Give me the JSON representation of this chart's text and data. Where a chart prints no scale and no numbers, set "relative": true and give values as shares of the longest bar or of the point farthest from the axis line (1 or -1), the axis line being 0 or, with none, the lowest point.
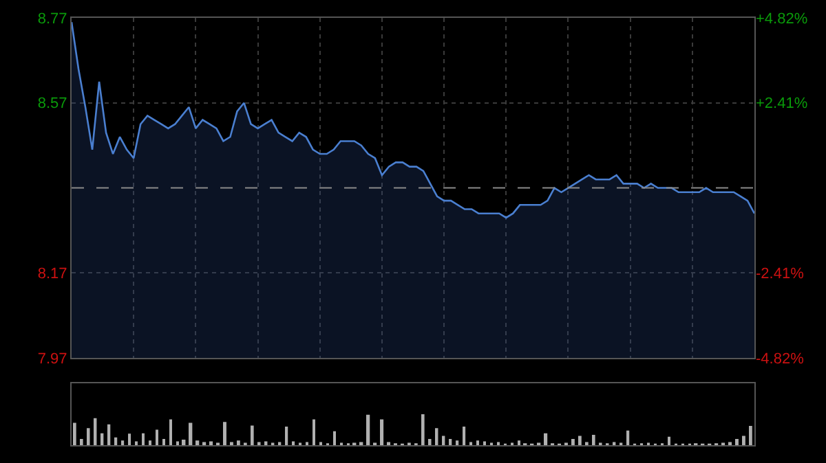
{
  "chart_data": [
    {
      "type": "area",
      "categories": [
        null,
        null,
        null,
        null,
        null,
        null,
        null,
        null,
        null,
        null,
        null,
        null,
        null,
        null,
        null,
        null,
        null,
        null,
        null,
        null,
        null,
        null,
        null,
        null,
        null,
        null,
        null,
        null,
        null,
        null,
        null,
        null,
        null,
        null,
        null,
        null,
        null,
        null,
        null,
        null,
        null,
        null,
        null,
        null,
        null,
        null,
        null,
        null,
        null,
        null,
        null,
        null,
        null,
        null,
        null,
        null,
        null,
        null,
        null,
        null,
        null,
        null,
        null,
        null,
        null,
        null,
        null,
        null,
        null,
        null,
        null,
        null,
        null,
        null,
        null,
        null,
        null,
        null,
        null,
        null,
        null,
        null,
        null,
        null,
        null,
        null,
        null,
        null,
        null,
        null,
        null,
        null,
        null,
        null,
        null,
        null,
        null,
        null,
        null,
        null
      ],
      "values": [
        8.76,
        8.65,
        8.56,
        8.46,
        8.62,
        8.5,
        8.45,
        8.49,
        8.46,
        8.44,
        8.52,
        8.54,
        8.53,
        8.52,
        8.51,
        8.52,
        8.54,
        8.56,
        8.51,
        8.53,
        8.52,
        8.51,
        8.48,
        8.49,
        8.55,
        8.57,
        8.52,
        8.51,
        8.52,
        8.53,
        8.5,
        8.49,
        8.48,
        8.5,
        8.49,
        8.46,
        8.45,
        8.45,
        8.46,
        8.48,
        8.48,
        8.48,
        8.47,
        8.45,
        8.44,
        8.4,
        8.42,
        8.43,
        8.43,
        8.42,
        8.42,
        8.41,
        8.38,
        8.35,
        8.34,
        8.34,
        8.33,
        8.32,
        8.32,
        8.31,
        8.31,
        8.31,
        8.31,
        8.3,
        8.31,
        8.33,
        8.33,
        8.33,
        8.33,
        8.34,
        8.37,
        8.36,
        8.37,
        8.38,
        8.39,
        8.4,
        8.39,
        8.39,
        8.39,
        8.4,
        8.38,
        8.38,
        8.38,
        8.37,
        8.38,
        8.37,
        8.37,
        8.37,
        8.36,
        8.36,
        8.36,
        8.36,
        8.37,
        8.36,
        8.36,
        8.36,
        8.36,
        8.35,
        8.34,
        8.31
      ],
      "color": "#4a7fd0",
      "ylim": [
        7.97,
        8.77
      ],
      "yticks": [
        7.97,
        8.17,
        8.57,
        8.77
      ],
      "y2lim": [
        -4.82,
        4.82
      ],
      "y2ticks": [
        {
          "value": 4.82,
          "label": "+4.82%"
        },
        {
          "value": 2.41,
          "label": "+2.41%"
        },
        {
          "value": -2.41,
          "label": "-2.41%"
        },
        {
          "value": -4.82,
          "label": "-4.82%"
        }
      ],
      "ref_lines": [
        {
          "axis": "y",
          "value": 8.37,
          "color": "#8a8a8a",
          "line_style": "dashed"
        }
      ],
      "grid": true,
      "tick_labels": "y"
    },
    {
      "type": "bar",
      "relative": true,
      "categories": [
        null,
        null,
        null,
        null,
        null,
        null,
        null,
        null,
        null,
        null,
        null,
        null,
        null,
        null,
        null,
        null,
        null,
        null,
        null,
        null,
        null,
        null,
        null,
        null,
        null,
        null,
        null,
        null,
        null,
        null,
        null,
        null,
        null,
        null,
        null,
        null,
        null,
        null,
        null,
        null,
        null,
        null,
        null,
        null,
        null,
        null,
        null,
        null,
        null,
        null,
        null,
        null,
        null,
        null,
        null,
        null,
        null,
        null,
        null,
        null,
        null,
        null,
        null,
        null,
        null,
        null,
        null,
        null,
        null,
        null,
        null,
        null,
        null,
        null,
        null,
        null,
        null,
        null,
        null,
        null,
        null,
        null,
        null,
        null,
        null,
        null,
        null,
        null,
        null,
        null,
        null,
        null,
        null,
        null,
        null,
        null,
        null,
        null,
        null,
        null
      ],
      "values": [
        0.72,
        0.2,
        0.55,
        0.87,
        0.38,
        0.67,
        0.25,
        0.15,
        0.37,
        0.12,
        0.38,
        0.15,
        0.5,
        0.2,
        0.83,
        0.12,
        0.18,
        0.72,
        0.15,
        0.1,
        0.12,
        0.08,
        0.75,
        0.1,
        0.15,
        0.08,
        0.63,
        0.1,
        0.12,
        0.08,
        0.1,
        0.6,
        0.12,
        0.08,
        0.1,
        0.83,
        0.1,
        0.06,
        0.45,
        0.08,
        0.06,
        0.08,
        0.1,
        0.98,
        0.08,
        0.83,
        0.1,
        0.06,
        0.05,
        0.08,
        0.06,
        1,
        0.2,
        0.55,
        0.3,
        0.2,
        0.15,
        0.6,
        0.1,
        0.15,
        0.12,
        0.08,
        0.1,
        0.05,
        0.08,
        0.15,
        0.06,
        0.05,
        0.08,
        0.38,
        0.06,
        0.05,
        0.08,
        0.2,
        0.3,
        0.1,
        0.33,
        0.08,
        0.06,
        0.1,
        0.08,
        0.47,
        0.05,
        0.06,
        0.08,
        0.05,
        0.06,
        0.27,
        0.05,
        0.04,
        0.05,
        0.06,
        0.04,
        0.05,
        0.06,
        0.08,
        0.1,
        0.2,
        0.3,
        0.62
      ],
      "color": "#b0b0b0",
      "tick_labels": false
    }
  ]
}
